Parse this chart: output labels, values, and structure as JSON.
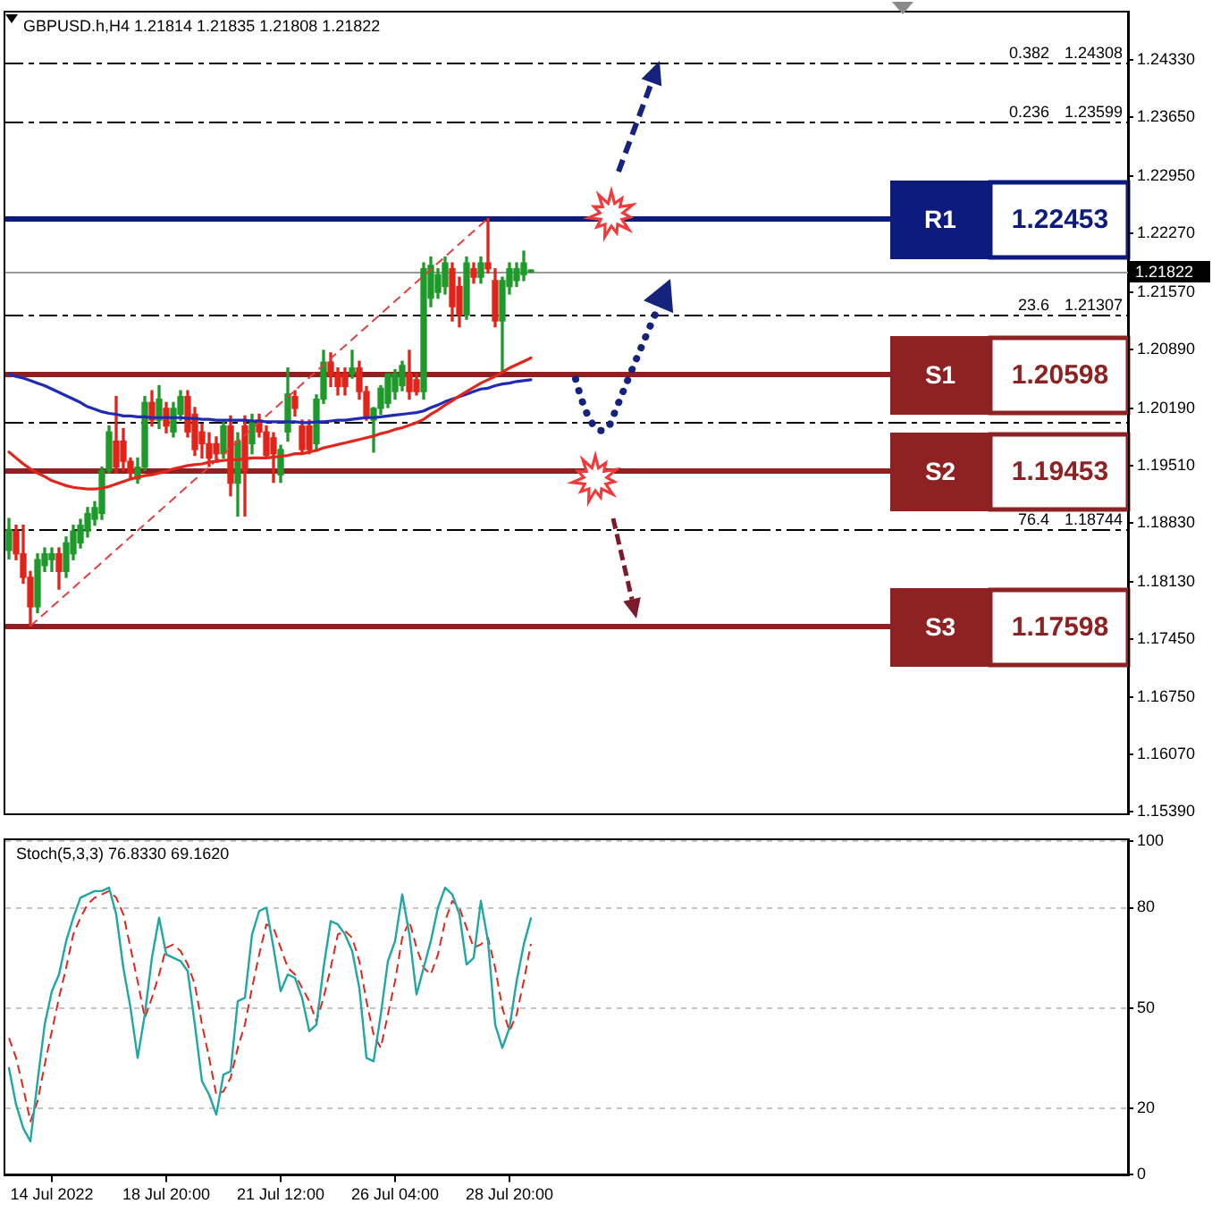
{
  "chart_data": [
    {
      "type": "candlestick",
      "title": "GBPUSD.h,H4 1.21814 1.21835 1.21808 1.21822",
      "categories": [
        null,
        null,
        null,
        null,
        null,
        null,
        null,
        null,
        null,
        null,
        null,
        null,
        null,
        null,
        null,
        null,
        null,
        null,
        null,
        null,
        null,
        null,
        null,
        null,
        null,
        null,
        null,
        null,
        null,
        null,
        null,
        null,
        null,
        null,
        null,
        null,
        null,
        null,
        null,
        null,
        null,
        null,
        null,
        null,
        null,
        null,
        null,
        null,
        null,
        null,
        null,
        null,
        null,
        null,
        null,
        null,
        null,
        null,
        null,
        null,
        null,
        null,
        null,
        null,
        null,
        null,
        null,
        null,
        null,
        null,
        null,
        null,
        null,
        null,
        null,
        null,
        null,
        null,
        null,
        null,
        null,
        null,
        null,
        null,
        null,
        null,
        null,
        null,
        null,
        null,
        null,
        null,
        null,
        null,
        null,
        null,
        null,
        null,
        null,
        null,
        null,
        null,
        null,
        null,
        null,
        null,
        null,
        null,
        null,
        null,
        null,
        null,
        null,
        null,
        null,
        null,
        null,
        null,
        null,
        null,
        null,
        null,
        null,
        null,
        null,
        null,
        null,
        null,
        null,
        null,
        null,
        null,
        null,
        null,
        null,
        null,
        null,
        null,
        null,
        null,
        null,
        null,
        null,
        null,
        null,
        null,
        null,
        null,
        null,
        null,
        null,
        null,
        null,
        null,
        null,
        null,
        null
      ],
      "ohlc": [
        [
          1.185,
          1.1888,
          1.184,
          1.1875
        ],
        [
          1.1873,
          1.188,
          1.1839,
          1.1846
        ],
        [
          1.1846,
          1.188,
          1.1811,
          1.1818
        ],
        [
          1.1818,
          1.1825,
          1.176,
          1.1783
        ],
        [
          1.1783,
          1.1846,
          1.1776,
          1.1839
        ],
        [
          1.1832,
          1.1853,
          1.1825,
          1.1846
        ],
        [
          1.1839,
          1.1853,
          1.1825,
          1.1846
        ],
        [
          1.1846,
          1.1853,
          1.1804,
          1.1825
        ],
        [
          1.1825,
          1.1866,
          1.1818,
          1.1859
        ],
        [
          1.1846,
          1.188,
          1.1839,
          1.1873
        ],
        [
          1.1859,
          1.1887,
          1.1853,
          1.188
        ],
        [
          1.1873,
          1.1901,
          1.1866,
          1.1894
        ],
        [
          1.1887,
          1.1908,
          1.188,
          1.1901
        ],
        [
          1.1894,
          1.1949,
          1.1887,
          1.1945
        ],
        [
          1.1945,
          1.1998,
          1.1942,
          1.1991
        ],
        [
          1.198,
          1.2033,
          1.1942,
          1.1949
        ],
        [
          1.198,
          1.1995,
          1.1945,
          1.1956
        ],
        [
          1.1956,
          1.196,
          1.1935,
          1.1942
        ],
        [
          1.1935,
          1.196,
          1.193,
          1.1949
        ],
        [
          1.1949,
          1.2033,
          1.1945,
          1.2026
        ],
        [
          1.2026,
          1.204,
          1.1998,
          1.2005
        ],
        [
          1.2005,
          1.2046,
          1.1995,
          1.203
        ],
        [
          1.2019,
          1.2026,
          1.199,
          1.1998
        ],
        [
          1.1991,
          1.2026,
          1.1985,
          1.2019
        ],
        [
          1.2012,
          1.204,
          1.2005,
          1.2033
        ],
        [
          1.2033,
          1.204,
          1.1985,
          1.1991
        ],
        [
          1.2012,
          1.202,
          1.1963,
          1.197
        ],
        [
          1.1991,
          1.2,
          1.196,
          1.1977
        ],
        [
          1.1977,
          1.199,
          1.195,
          1.196
        ],
        [
          1.1977,
          1.1985,
          1.1955,
          1.1965
        ],
        [
          1.1965,
          1.2005,
          1.196,
          1.1998
        ],
        [
          1.1998,
          1.201,
          1.1915,
          1.193
        ],
        [
          1.193,
          1.199,
          1.1891,
          1.198
        ],
        [
          1.1998,
          1.201,
          1.1891,
          1.1945
        ],
        [
          1.1977,
          1.2012,
          1.1965,
          1.2002
        ],
        [
          1.2005,
          1.2012,
          1.1985,
          1.1991
        ],
        [
          1.1991,
          1.1998,
          1.196,
          1.1963
        ],
        [
          1.1984,
          1.199,
          1.1931,
          1.1965
        ],
        [
          1.194,
          1.1975,
          1.1931,
          1.197
        ],
        [
          1.1991,
          1.2067,
          1.198,
          1.2036
        ],
        [
          1.2033,
          1.204,
          1.201,
          1.2019
        ],
        [
          1.1998,
          1.2005,
          1.1965,
          1.197
        ],
        [
          1.1998,
          1.2005,
          1.1965,
          1.197
        ],
        [
          1.1977,
          1.2035,
          1.197,
          1.203
        ],
        [
          1.203,
          1.2088,
          1.2025,
          1.2074
        ],
        [
          1.2074,
          1.2085,
          1.2045,
          1.2058
        ],
        [
          1.206,
          1.2067,
          1.2035,
          1.2045
        ],
        [
          1.206,
          1.2067,
          1.2035,
          1.2045
        ],
        [
          1.206,
          1.2088,
          1.2055,
          1.2067
        ],
        [
          1.2067,
          1.2075,
          1.203,
          1.2039
        ],
        [
          1.2039,
          1.2045,
          1.2005,
          1.201
        ],
        [
          1.2005,
          1.202,
          1.1967,
          1.2019
        ],
        [
          1.2019,
          1.2046,
          1.2012,
          1.2043
        ],
        [
          1.2025,
          1.206,
          1.202,
          1.206
        ],
        [
          1.2039,
          1.2065,
          1.203,
          1.206
        ],
        [
          1.2046,
          1.2075,
          1.204,
          1.207
        ],
        [
          1.206,
          1.2088,
          1.203,
          1.2039
        ],
        [
          1.2053,
          1.206,
          1.2035,
          1.2039
        ],
        [
          1.2039,
          1.2192,
          1.203,
          1.2185
        ],
        [
          1.215,
          1.2199,
          1.214,
          1.2189
        ],
        [
          1.2157,
          1.2185,
          1.215,
          1.2178
        ],
        [
          1.2164,
          1.2199,
          1.2155,
          1.2192
        ],
        [
          1.2185,
          1.2192,
          1.2123,
          1.214
        ],
        [
          1.2164,
          1.2175,
          1.2116,
          1.213
        ],
        [
          1.213,
          1.2199,
          1.2125,
          1.2192
        ],
        [
          1.2185,
          1.2192,
          1.2168,
          1.2175
        ],
        [
          1.2175,
          1.2199,
          1.2168,
          1.2192
        ],
        [
          1.2192,
          1.2245,
          1.218,
          1.2185
        ],
        [
          1.2171,
          1.2185,
          1.2116,
          1.2123
        ],
        [
          1.2123,
          1.2175,
          1.2063,
          1.2171
        ],
        [
          1.2164,
          1.2192,
          1.2155,
          1.2185
        ],
        [
          1.2171,
          1.2192,
          1.2164,
          1.2185
        ],
        [
          1.2178,
          1.2206,
          1.2171,
          1.2192
        ],
        [
          1.21814,
          1.21835,
          1.21808,
          1.21822
        ],
        null,
        null,
        null,
        null,
        null,
        null,
        null,
        null,
        null,
        null,
        null,
        null,
        null,
        null,
        null,
        null,
        null,
        null,
        null,
        null,
        null,
        null,
        null,
        null,
        null,
        null,
        null,
        null,
        null,
        null,
        null,
        null,
        null,
        null,
        null,
        null,
        null,
        null,
        null,
        null,
        null,
        null,
        null,
        null,
        null,
        null,
        null,
        null,
        null,
        null,
        null,
        null,
        null,
        null,
        null,
        null,
        null,
        null,
        null,
        null,
        null,
        null,
        null,
        null,
        null,
        null,
        null,
        null,
        null,
        null,
        null,
        null,
        null,
        null,
        null,
        null,
        null,
        null,
        null,
        null,
        null,
        null,
        null
      ],
      "colors": [
        "#1e9a2a",
        "#e2231a",
        "#e2231a",
        "#e2231a",
        "#1e9a2a",
        "#1e9a2a",
        "#1e9a2a",
        "#e2231a",
        "#1e9a2a",
        "#1e9a2a",
        "#1e9a2a",
        "#1e9a2a",
        "#1e9a2a",
        "#1e9a2a",
        "#1e9a2a",
        "#e2231a",
        "#e2231a",
        "#e2231a",
        "#1e9a2a",
        "#1e9a2a",
        "#e2231a",
        "#1e9a2a",
        "#e2231a",
        "#1e9a2a",
        "#1e9a2a",
        "#e2231a",
        "#e2231a",
        "#e2231a",
        "#e2231a",
        "#e2231a",
        "#1e9a2a",
        "#e2231a",
        "#1e9a2a",
        "#e2231a",
        "#1e9a2a",
        "#e2231a",
        "#e2231a",
        "#e2231a",
        "#1e9a2a",
        "#1e9a2a",
        "#e2231a",
        "#e2231a",
        "#e2231a",
        "#1e9a2a",
        "#1e9a2a",
        "#e2231a",
        "#e2231a",
        "#e2231a",
        "#1e9a2a",
        "#e2231a",
        "#e2231a",
        "#1e9a2a",
        "#1e9a2a",
        "#1e9a2a",
        "#1e9a2a",
        "#1e9a2a",
        "#e2231a",
        "#e2231a",
        "#1e9a2a",
        "#1e9a2a",
        "#1e9a2a",
        "#1e9a2a",
        "#e2231a",
        "#e2231a",
        "#1e9a2a",
        "#e2231a",
        "#1e9a2a",
        "#e2231a",
        "#e2231a",
        "#1e9a2a",
        "#1e9a2a",
        "#1e9a2a",
        "#1e9a2a",
        "#1e9a2a",
        null,
        null,
        null,
        null,
        null,
        null,
        null,
        null,
        null,
        null,
        null,
        null,
        null,
        null,
        null,
        null,
        null,
        null,
        null,
        null,
        null,
        null,
        null,
        null,
        null,
        null,
        null,
        null,
        null,
        null,
        null,
        null,
        null,
        null,
        null,
        null,
        null,
        null,
        null,
        null,
        null,
        null,
        null,
        null,
        null,
        null,
        null,
        null,
        null,
        null,
        null,
        null,
        null,
        null,
        null,
        null,
        null,
        null,
        null,
        null,
        null,
        null,
        null,
        null,
        null,
        null,
        null,
        null,
        null,
        null,
        null,
        null,
        null,
        null,
        null,
        null,
        null,
        null,
        null,
        null,
        null,
        null,
        null
      ],
      "series": [
        {
          "type": "line",
          "color": "#e3261c",
          "values": [
            1.1967,
            1.196,
            1.1953,
            1.1947,
            1.1942,
            1.1938,
            1.1933,
            1.193,
            1.1927,
            1.1925,
            1.1924,
            1.1923,
            1.1923,
            1.1924,
            1.1926,
            1.1929,
            1.1932,
            1.1935,
            1.1937,
            1.1939,
            1.194,
            1.1942,
            1.1944,
            1.1947,
            1.1949,
            1.1951,
            1.1952,
            1.1953,
            1.1955,
            1.1956,
            1.1957,
            1.1958,
            1.1958,
            1.1959,
            1.196,
            1.196,
            1.196,
            1.1961,
            1.1962,
            1.1963,
            1.1965,
            1.1965,
            1.1967,
            1.1969,
            1.1972,
            1.1974,
            1.1976,
            1.1978,
            1.198,
            1.1982,
            1.1984,
            1.1986,
            1.1989,
            1.1991,
            1.1994,
            1.1996,
            1.1999,
            1.2002,
            1.2006,
            1.2012,
            1.2017,
            1.2023,
            1.2028,
            1.2034,
            1.2039,
            1.2044,
            1.2049,
            1.2053,
            1.2057,
            1.2062,
            1.2067,
            1.2071,
            1.2075,
            1.2079,
            null,
            null,
            null,
            null,
            null,
            null,
            null,
            null,
            null,
            null,
            null,
            null,
            null,
            null,
            null,
            null,
            null,
            null,
            null,
            null,
            null,
            null,
            null,
            null,
            null,
            null,
            null,
            null,
            null,
            null,
            null,
            null,
            null,
            null,
            null,
            null,
            null,
            null,
            null,
            null,
            null,
            null,
            null,
            null,
            null,
            null,
            null,
            null,
            null,
            null,
            null,
            null,
            null,
            null,
            null,
            null,
            null,
            null,
            null,
            null,
            null,
            null,
            null,
            null,
            null,
            null,
            null,
            null,
            null,
            null,
            null,
            null,
            null,
            null,
            null,
            null,
            null,
            null,
            null,
            null,
            null,
            null,
            null
          ]
        },
        {
          "type": "line",
          "color": "#1f2bb5",
          "values": [
            1.206,
            1.2057,
            1.2055,
            1.2052,
            1.2049,
            1.2046,
            1.2042,
            1.2038,
            1.2034,
            1.203,
            1.2026,
            1.2021,
            1.2018,
            1.2015,
            1.2013,
            1.2012,
            1.201,
            1.201,
            1.2009,
            1.2009,
            1.2008,
            1.2008,
            1.2008,
            1.2008,
            1.2008,
            1.2007,
            1.2007,
            1.2006,
            1.2006,
            1.2005,
            1.2005,
            1.2005,
            1.2005,
            1.2005,
            1.2004,
            1.2004,
            1.2003,
            1.2003,
            1.2003,
            1.2003,
            1.2003,
            1.2002,
            1.2002,
            1.2003,
            1.2003,
            1.2004,
            1.2005,
            1.2005,
            1.2006,
            1.2007,
            1.2008,
            1.2008,
            1.2009,
            1.201,
            1.2011,
            1.2012,
            1.2013,
            1.2014,
            1.2016,
            1.202,
            1.2023,
            1.2027,
            1.203,
            1.2033,
            1.2036,
            1.2039,
            1.2042,
            1.2043,
            1.2046,
            1.2048,
            1.2049,
            1.2051,
            1.2052,
            1.2053,
            null,
            null,
            null,
            null,
            null,
            null,
            null,
            null,
            null,
            null,
            null,
            null,
            null,
            null,
            null,
            null,
            null,
            null,
            null,
            null,
            null,
            null,
            null,
            null,
            null,
            null,
            null,
            null,
            null,
            null,
            null,
            null,
            null,
            null,
            null,
            null,
            null,
            null,
            null,
            null,
            null,
            null,
            null,
            null,
            null,
            null,
            null,
            null,
            null,
            null,
            null,
            null,
            null,
            null,
            null,
            null,
            null,
            null,
            null,
            null,
            null,
            null,
            null,
            null,
            null,
            null,
            null,
            null,
            null,
            null,
            null,
            null,
            null,
            null,
            null,
            null,
            null,
            null,
            null,
            null,
            null,
            null,
            null
          ]
        },
        {
          "type": "line",
          "color": "#e04040",
          "line_style": "dashed",
          "values": [
            null,
            null,
            null,
            1.176,
            null,
            null,
            null,
            null,
            null,
            null,
            null,
            null,
            null,
            null,
            null,
            null,
            null,
            null,
            null,
            null,
            null,
            null,
            null,
            null,
            null,
            null,
            null,
            null,
            null,
            null,
            null,
            null,
            null,
            null,
            null,
            null,
            null,
            null,
            null,
            null,
            null,
            null,
            null,
            null,
            null,
            null,
            null,
            null,
            null,
            null,
            null,
            null,
            null,
            null,
            null,
            null,
            null,
            null,
            null,
            null,
            null,
            null,
            null,
            null,
            null,
            null,
            null,
            1.2245,
            null,
            null,
            null,
            null,
            null,
            null,
            null,
            null,
            null,
            null,
            null,
            null,
            null,
            null,
            null,
            null,
            null,
            null,
            null,
            null,
            null,
            null,
            null,
            null,
            null,
            null,
            null,
            null,
            null,
            null,
            null,
            null,
            null,
            null,
            null,
            null,
            null,
            null,
            null,
            null,
            null,
            null,
            null,
            null,
            null,
            null,
            null,
            null,
            null,
            null,
            null,
            null,
            null,
            null,
            null,
            null,
            null,
            null,
            null,
            null,
            null,
            null,
            null,
            null,
            null,
            null,
            null,
            null,
            null,
            null,
            null,
            null,
            null,
            null,
            null,
            null,
            null,
            null,
            null,
            null,
            null,
            null,
            null,
            null,
            null,
            null,
            null,
            null,
            null
          ]
        }
      ],
      "ylim": [
        1.1536,
        1.2489
      ],
      "yticks": [
        {
          "value": 1.1539,
          "label": "1.15390"
        },
        {
          "value": 1.1607,
          "label": "1.16070"
        },
        {
          "value": 1.1675,
          "label": "1.16750"
        },
        {
          "value": 1.1745,
          "label": "1.17450"
        },
        {
          "value": 1.1813,
          "label": "1.18130"
        },
        {
          "value": 1.1883,
          "label": "1.18830"
        },
        {
          "value": 1.1951,
          "label": "1.19510"
        },
        {
          "value": 1.2019,
          "label": "1.20190"
        },
        {
          "value": 1.2089,
          "label": "1.20890"
        },
        {
          "value": 1.2157,
          "label": "1.21570"
        },
        {
          "value": 1.2227,
          "label": "1.22270"
        },
        {
          "value": 1.2295,
          "label": "1.22950"
        },
        {
          "value": 1.2365,
          "label": "1.23650"
        },
        {
          "value": 1.2433,
          "label": "1.24330"
        }
      ],
      "ref_lines": [
        {
          "axis": "y",
          "value": 1.24308,
          "label": "1.24308",
          "color": "#000000",
          "line_style": "dashed"
        },
        {
          "axis": "y",
          "value": 1.23599,
          "label": "1.23599",
          "color": "#000000",
          "line_style": "dashed"
        },
        {
          "axis": "y",
          "value": 1.21307,
          "label": "1.21307",
          "color": "#000000",
          "line_style": "dashed"
        },
        {
          "axis": "y",
          "value": 1.2003,
          "color": "#000000",
          "line_style": "dashed"
        },
        {
          "axis": "y",
          "value": 1.18744,
          "label": "1.18744",
          "color": "#000000",
          "line_style": "dashed"
        },
        {
          "axis": "y",
          "value": 1.21822,
          "label": "1.21822",
          "color": "#9a9a9a",
          "line_style": "solid"
        },
        {
          "axis": "y",
          "value": 1.22453,
          "label": "1.22453",
          "color": "#0d1b7e",
          "line_style": "solid"
        },
        {
          "axis": "y",
          "value": 1.20598,
          "label": "1.20598",
          "color": "#8e2222",
          "line_style": "solid"
        },
        {
          "axis": "y",
          "value": 1.19453,
          "label": "1.19453",
          "color": "#8e2222",
          "line_style": "solid"
        },
        {
          "axis": "y",
          "value": 1.17598,
          "label": "1.17598",
          "color": "#8e2222",
          "line_style": "solid"
        }
      ],
      "annotations": [
        {
          "text": "0.382",
          "y": 1.24308
        },
        {
          "text": "0.236",
          "y": 1.23599
        },
        {
          "text": "23.6",
          "y": 1.21307
        },
        {
          "text": "76.4",
          "y": 1.18744
        },
        {
          "text": "R1",
          "y": 1.22453
        },
        {
          "text": "S1",
          "y": 1.20598
        },
        {
          "text": "S2",
          "y": 1.19453
        },
        {
          "text": "S3",
          "y": 1.17598
        }
      ],
      "tick_labels": "y",
      "marker": "none"
    },
    {
      "type": "line",
      "title": "Stoch(5,3,3) 76.8330 69.1620",
      "categories": [
        null,
        null,
        null,
        null,
        null,
        null,
        "14 Jul 2022",
        null,
        null,
        null,
        null,
        null,
        null,
        null,
        null,
        null,
        null,
        null,
        null,
        null,
        null,
        null,
        "18 Jul 20:00",
        null,
        null,
        null,
        null,
        null,
        null,
        null,
        null,
        null,
        null,
        null,
        null,
        null,
        null,
        null,
        "21 Jul 12:00",
        null,
        null,
        null,
        null,
        null,
        null,
        null,
        null,
        null,
        null,
        null,
        null,
        null,
        null,
        null,
        "26 Jul 04:00",
        null,
        null,
        null,
        null,
        null,
        null,
        null,
        null,
        null,
        null,
        null,
        null,
        null,
        null,
        null,
        "28 Jul 20:00",
        null,
        null,
        null,
        null,
        null,
        null,
        null,
        null,
        null,
        null,
        null,
        null,
        null,
        null,
        null,
        null,
        null,
        null,
        null,
        null,
        null,
        null,
        null,
        null,
        null,
        null,
        null,
        null,
        null,
        null,
        null,
        null,
        null,
        null,
        null,
        null,
        null,
        null,
        null,
        null,
        null,
        null,
        null,
        null,
        null,
        null,
        null,
        null,
        null,
        null,
        null,
        null,
        null,
        null,
        null,
        null,
        null,
        null,
        null,
        null,
        null,
        null,
        null,
        null,
        null,
        null,
        null,
        null,
        null,
        null,
        null,
        null,
        null,
        null,
        null,
        null,
        null,
        null,
        null,
        null,
        null,
        null,
        null,
        null,
        null,
        null
      ],
      "series": [
        {
          "color": "#21a6a6",
          "values": [
            32,
            21,
            14,
            10,
            28,
            45,
            55,
            60,
            70,
            77,
            83,
            84,
            85,
            85,
            86,
            78,
            62,
            50,
            35,
            48,
            65,
            77,
            66,
            65,
            64,
            61,
            45,
            28,
            24,
            18,
            30,
            31,
            52,
            53,
            72,
            79,
            80,
            68,
            55,
            60,
            59,
            53,
            43,
            45,
            62,
            76,
            75,
            72,
            67,
            56,
            35,
            34,
            48,
            64,
            70,
            84,
            72,
            54,
            62,
            70,
            80,
            86,
            84,
            78,
            63,
            65,
            82,
            70,
            45,
            38,
            44,
            58,
            69,
            76.833,
            null,
            null,
            null,
            null,
            null,
            null,
            null,
            null,
            null,
            null,
            null,
            null,
            null,
            null,
            null,
            null,
            null,
            null,
            null,
            null,
            null,
            null,
            null,
            null,
            null,
            null,
            null,
            null,
            null,
            null,
            null,
            null,
            null,
            null,
            null,
            null,
            null,
            null,
            null,
            null,
            null,
            null,
            null,
            null,
            null,
            null,
            null,
            null,
            null,
            null,
            null,
            null,
            null,
            null,
            null,
            null,
            null,
            null,
            null,
            null,
            null,
            null,
            null,
            null,
            null,
            null,
            null,
            null,
            null,
            null,
            null,
            null,
            null,
            null,
            null,
            null,
            null,
            null,
            null,
            null,
            null,
            null,
            null
          ]
        },
        {
          "color": "#e3261c",
          "line_style": "dashed",
          "values": [
            41,
            35,
            26,
            16,
            22,
            33,
            43,
            53,
            62,
            72,
            77,
            81,
            83,
            84,
            85,
            83,
            78,
            68,
            58,
            47,
            53,
            60,
            68,
            69,
            67,
            63,
            57,
            45,
            35,
            24,
            25,
            29,
            38,
            45,
            56,
            66,
            75,
            74,
            68,
            62,
            60,
            56,
            52,
            46,
            53,
            62,
            72,
            73,
            71,
            64,
            52,
            42,
            38,
            48,
            58,
            71,
            76,
            68,
            62,
            60,
            66,
            76,
            82,
            80,
            74,
            68,
            69,
            71,
            62,
            50,
            43,
            48,
            58,
            69.162,
            null,
            null,
            null,
            null,
            null,
            null,
            null,
            null,
            null,
            null,
            null,
            null,
            null,
            null,
            null,
            null,
            null,
            null,
            null,
            null,
            null,
            null,
            null,
            null,
            null,
            null,
            null,
            null,
            null,
            null,
            null,
            null,
            null,
            null,
            null,
            null,
            null,
            null,
            null,
            null,
            null,
            null,
            null,
            null,
            null,
            null,
            null,
            null,
            null,
            null,
            null,
            null,
            null,
            null,
            null,
            null,
            null,
            null,
            null,
            null,
            null,
            null,
            null,
            null,
            null,
            null,
            null,
            null,
            null,
            null,
            null,
            null,
            null,
            null,
            null,
            null,
            null,
            null,
            null,
            null,
            null,
            null,
            null
          ]
        }
      ],
      "ylim": [
        0,
        100
      ],
      "yticks": [
        0,
        20,
        50,
        80,
        100
      ],
      "grid": "y",
      "marker": "none"
    }
  ]
}
